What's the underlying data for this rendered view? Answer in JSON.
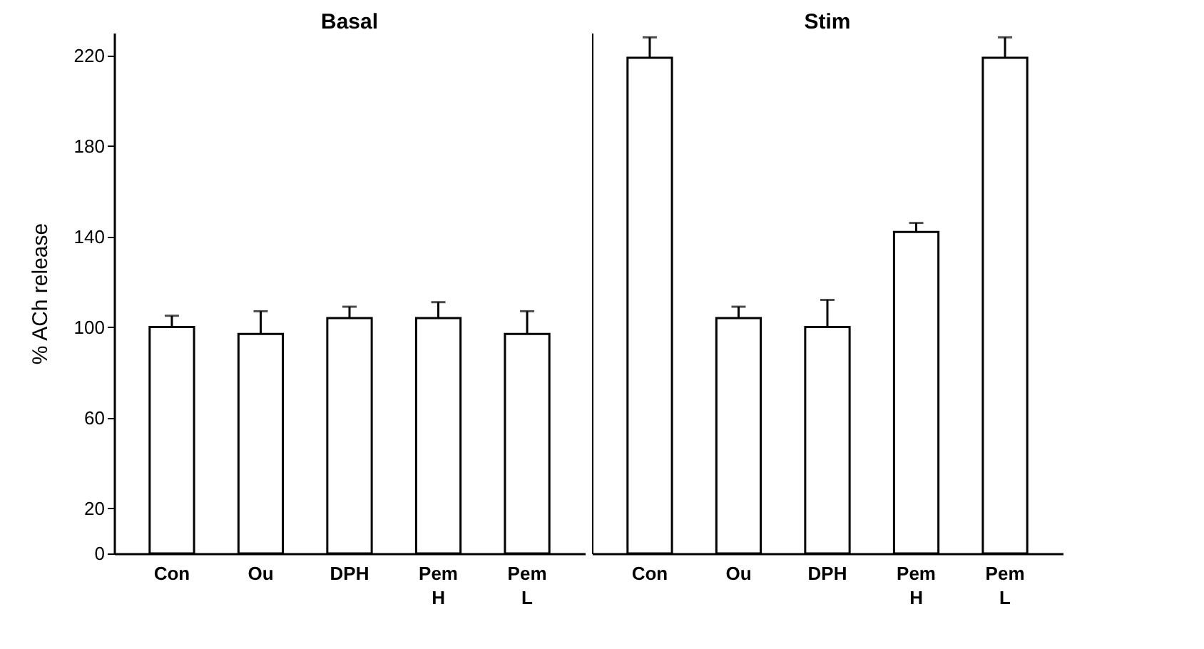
{
  "chart_data": [
    {
      "type": "bar",
      "title": "Basal",
      "ylabel": "% ACh release",
      "categories": [
        "Con",
        "Ou",
        "DPH",
        "Pem\nH",
        "Pem\nL"
      ],
      "values": [
        100,
        97,
        104,
        104,
        97
      ],
      "errors": [
        [
          100,
          105
        ],
        [
          97,
          107
        ],
        [
          104,
          109
        ],
        [
          104,
          111
        ],
        [
          97,
          107
        ]
      ],
      "color": "#ffffff",
      "ylim": [
        0,
        230
      ],
      "yticks": [
        0,
        20,
        60,
        100,
        140,
        180,
        220
      ]
    },
    {
      "type": "bar",
      "title": "Stim",
      "categories": [
        "Con",
        "Ou",
        "DPH",
        "Pem\nH",
        "Pem\nL"
      ],
      "values": [
        219,
        104,
        100,
        142,
        219
      ],
      "errors": [
        [
          219,
          228
        ],
        [
          104,
          109
        ],
        [
          100,
          112
        ],
        [
          142,
          146
        ],
        [
          219,
          228
        ]
      ],
      "color": "#ffffff",
      "ylim": [
        0,
        230
      ],
      "yticks": [
        0,
        20,
        60,
        100,
        140,
        180,
        220
      ],
      "tick_labels": "x"
    }
  ]
}
